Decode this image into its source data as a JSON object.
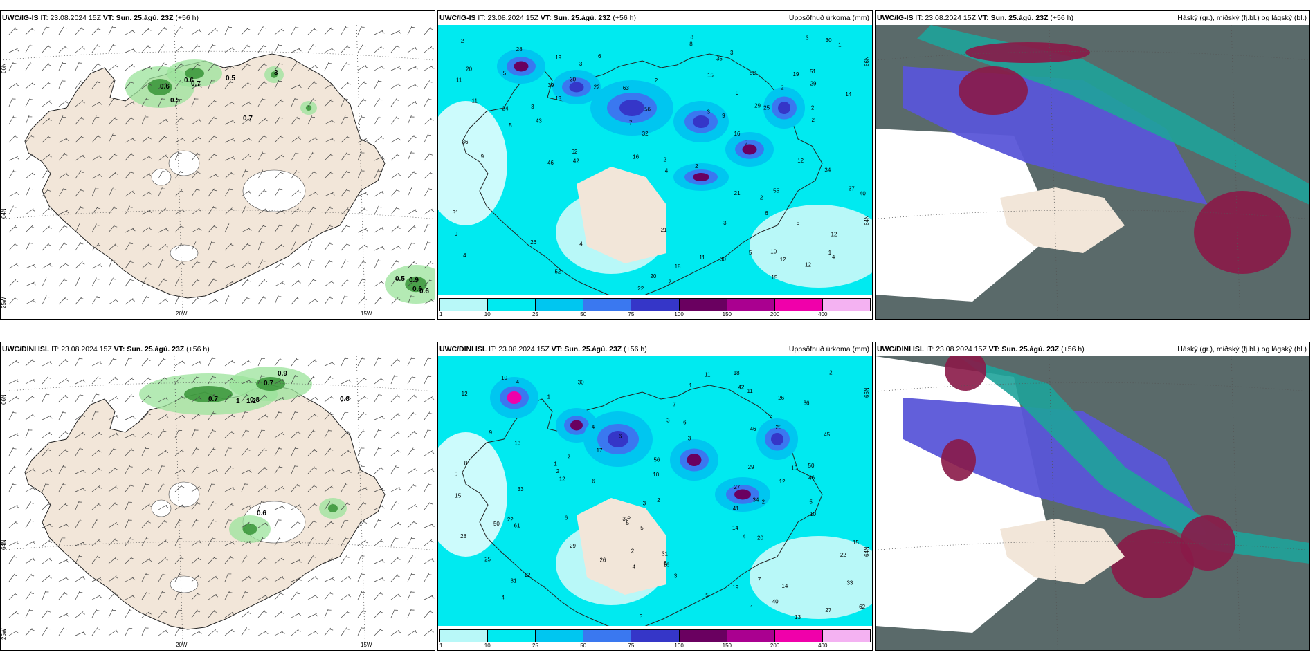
{
  "colors": {
    "land": "#f2e6d9",
    "precip_scale": [
      "#b8f8f8",
      "#00eaf0",
      "#00c6f0",
      "#3a78f0",
      "#3536c8",
      "#6a0060",
      "#aa0090",
      "#f000aa",
      "#f4b2f2"
    ],
    "cloud_high": "#5a6a6a",
    "cloud_mid": "#1ea39a",
    "cloud_low": "#5a56d8",
    "cloud_red": "#8a1a48"
  },
  "panels": [
    {
      "id": "p1",
      "model": "UWC/IG-IS",
      "it_label": "IT:",
      "it_value": "23.08.2024 15Z",
      "vt_label": "VT:",
      "vt_value": "Sun. 25.ágú. 23Z",
      "lead": "(+56 h)",
      "title_right": "",
      "lat_labels": [
        "66N",
        "64N"
      ],
      "lon_labels": [
        "25W",
        "20W",
        "15W"
      ],
      "values": [
        "0.6",
        "0.7",
        "0.6",
        "0.5",
        "0.5",
        "3",
        "0.7",
        "0.5",
        "0.9",
        "0.6",
        "0.6"
      ]
    },
    {
      "id": "p2",
      "model": "UWC/IG-IS",
      "it_label": "IT:",
      "it_value": "23.08.2024 15Z",
      "vt_label": "VT:",
      "vt_value": "Sun. 25.ágú. 23Z",
      "lead": "(+56 h)",
      "title_right": "Uppsöfnuð úrkoma (mm)",
      "lat_labels": [
        "66N",
        "64N"
      ],
      "values": [
        "11",
        "13",
        "16",
        "20",
        "19",
        "22",
        "21",
        "42",
        "51",
        "40",
        "37",
        "30",
        "29",
        "26",
        "36",
        "52",
        "62",
        "63",
        "12",
        "11",
        "12",
        "34",
        "32",
        "21",
        "52",
        "43",
        "29",
        "35",
        "28",
        "46",
        "31",
        "30",
        "30",
        "24",
        "20",
        "19",
        "22",
        "15",
        "8",
        "9",
        "25",
        "39",
        "7",
        "10",
        "18",
        "14",
        "11",
        "12",
        "12",
        "55",
        "56",
        "9",
        "16",
        "2",
        "2",
        "3",
        "4",
        "6",
        "5",
        "3",
        "2",
        "2",
        "2",
        "1",
        "2",
        "5",
        "4",
        "8",
        "9",
        "3",
        "2",
        "1",
        "4",
        "3",
        "5",
        "3",
        "6",
        "3",
        "5",
        "4",
        "2",
        "2",
        "5",
        "9",
        "15"
      ],
      "colorbar_labels": [
        "1",
        "10",
        "25",
        "50",
        "75",
        "100",
        "150",
        "200",
        "400"
      ]
    },
    {
      "id": "p3",
      "model": "UWC/IG-IS",
      "it_label": "IT:",
      "it_value": "23.08.2024 15Z",
      "vt_label": "VT:",
      "vt_value": "Sun. 25.ágú. 23Z",
      "lead": "(+56 h)",
      "title_right": "Háský (gr.), miðský (fj.bl.) og lágský (bl.)"
    },
    {
      "id": "p4",
      "model": "UWC/DINI ISL",
      "it_label": "IT:",
      "it_value": "23.08.2024 15Z",
      "vt_label": "VT:",
      "vt_value": "Sun. 25.ágú. 23Z",
      "lead": "(+56 h)",
      "title_right": "",
      "lat_labels": [
        "66N",
        "64N"
      ],
      "lon_labels": [
        "25W",
        "20W",
        "15W"
      ],
      "values": [
        "0.9",
        "0.7",
        "0.8",
        "0.7",
        "1",
        "1.2",
        "0.8",
        "0.6"
      ]
    },
    {
      "id": "p5",
      "model": "UWC/DINI ISL",
      "it_label": "IT:",
      "it_value": "23.08.2024 15Z",
      "vt_label": "VT:",
      "vt_value": "Sun. 25.ágú. 23Z",
      "lead": "(+56 h)",
      "title_right": "Uppsöfnuð úrkoma (mm)",
      "lat_labels": [
        "66N",
        "64N"
      ],
      "values": [
        "14",
        "15",
        "15",
        "22",
        "19",
        "25",
        "50",
        "56",
        "33",
        "40",
        "34",
        "41",
        "28",
        "20",
        "29",
        "27",
        "36",
        "50",
        "26",
        "6",
        "5",
        "15",
        "29",
        "42",
        "46",
        "31",
        "13",
        "46",
        "62",
        "61",
        "45",
        "11",
        "8",
        "7",
        "6",
        "4",
        "3",
        "2",
        "2",
        "1",
        "5",
        "6",
        "7",
        "3",
        "5",
        "4",
        "2",
        "2",
        "3",
        "4",
        "2",
        "1",
        "10",
        "14",
        "12",
        "12",
        "11",
        "10",
        "12",
        "6",
        "5",
        "4",
        "3",
        "5",
        "16",
        "25",
        "27",
        "26",
        "31",
        "32",
        "30",
        "33",
        "22",
        "18",
        "17",
        "12",
        "13",
        "5",
        "10",
        "9",
        "4",
        "6",
        "3",
        "3",
        "1",
        "1",
        "2"
      ],
      "colorbar_labels": [
        "1",
        "10",
        "25",
        "50",
        "75",
        "100",
        "150",
        "200",
        "400"
      ]
    },
    {
      "id": "p6",
      "model": "UWC/DINI ISL",
      "it_label": "IT:",
      "it_value": "23.08.2024 15Z",
      "vt_label": "VT:",
      "vt_value": "Sun. 25.ágú. 23Z",
      "lead": "(+56 h)",
      "title_right": "Háský (gr.), miðský (fj.bl.) og lágský (bl.)"
    }
  ]
}
